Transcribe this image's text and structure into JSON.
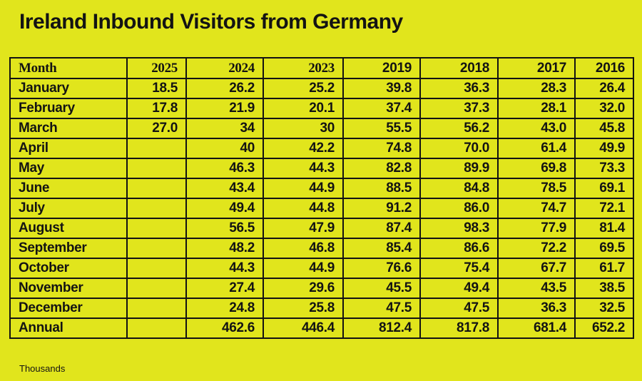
{
  "title": "Ireland Inbound Visitors from Germany",
  "footnote": "Thousands",
  "colors": {
    "background": "#e1e51c",
    "text": "#131313",
    "border": "#131313"
  },
  "chart_data": {
    "type": "table",
    "title": "Ireland Inbound Visitors from Germany",
    "unit_note": "Thousands",
    "columns": [
      "Month",
      "2025",
      "2024",
      "2023",
      "2019",
      "2018",
      "2017",
      "2016"
    ],
    "rows": [
      [
        "January",
        "18.5",
        "26.2",
        "25.2",
        "39.8",
        "36.3",
        "28.3",
        "26.4"
      ],
      [
        "February",
        "17.8",
        "21.9",
        "20.1",
        "37.4",
        "37.3",
        "28.1",
        "32.0"
      ],
      [
        "March",
        "27.0",
        "34",
        "30",
        "55.5",
        "56.2",
        "43.0",
        "45.8"
      ],
      [
        "April",
        "",
        "40",
        "42.2",
        "74.8",
        "70.0",
        "61.4",
        "49.9"
      ],
      [
        "May",
        "",
        "46.3",
        "44.3",
        "82.8",
        "89.9",
        "69.8",
        "73.3"
      ],
      [
        "June",
        "",
        "43.4",
        "44.9",
        "88.5",
        "84.8",
        "78.5",
        "69.1"
      ],
      [
        "July",
        "",
        "49.4",
        "44.8",
        "91.2",
        "86.0",
        "74.7",
        "72.1"
      ],
      [
        "August",
        "",
        "56.5",
        "47.9",
        "87.4",
        "98.3",
        "77.9",
        "81.4"
      ],
      [
        "September",
        "",
        "48.2",
        "46.8",
        "85.4",
        "86.6",
        "72.2",
        "69.5"
      ],
      [
        "October",
        "",
        "44.3",
        "44.9",
        "76.6",
        "75.4",
        "67.7",
        "61.7"
      ],
      [
        "November",
        "",
        "27.4",
        "29.6",
        "45.5",
        "49.4",
        "43.5",
        "38.5"
      ],
      [
        "December",
        "",
        "24.8",
        "25.8",
        "47.5",
        "47.5",
        "36.3",
        "32.5"
      ],
      [
        "Annual",
        "",
        "462.6",
        "446.4",
        "812.4",
        "817.8",
        "681.4",
        "652.2"
      ]
    ]
  }
}
